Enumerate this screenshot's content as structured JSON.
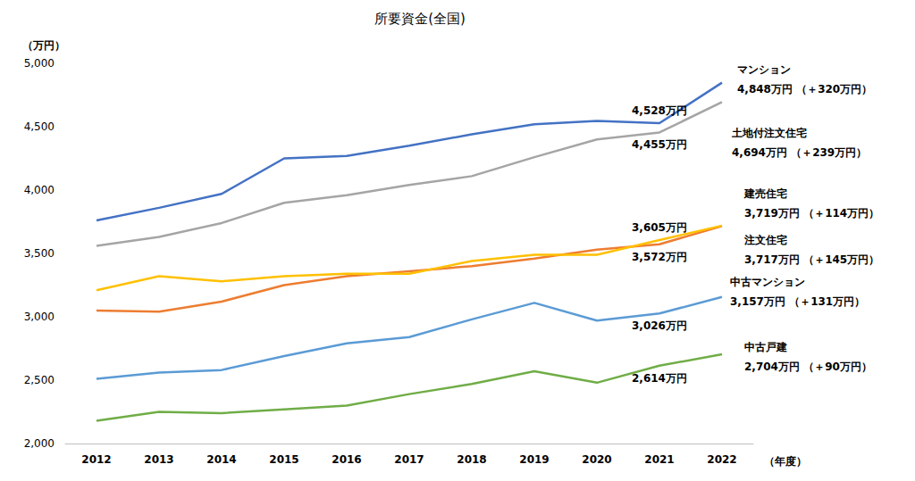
{
  "chart_data": {
    "type": "line",
    "title": "所要資金(全国)",
    "x_label": "（年度）",
    "y_label": "（万円）",
    "categories": [
      "2012",
      "2013",
      "2014",
      "2015",
      "2016",
      "2017",
      "2018",
      "2019",
      "2020",
      "2021",
      "2022"
    ],
    "ylim": [
      2000,
      5000
    ],
    "yticks": [
      {
        "value": 2000,
        "label": "2,000"
      },
      {
        "value": 2500,
        "label": "2,500"
      },
      {
        "value": 3000,
        "label": "3,000"
      },
      {
        "value": 3500,
        "label": "3,500"
      },
      {
        "value": 4000,
        "label": "4,000"
      },
      {
        "value": 4500,
        "label": "4,500"
      },
      {
        "value": 5000,
        "label": "5,000"
      }
    ],
    "grid": false,
    "series": [
      {
        "name": "マンション",
        "color": "#4472c4",
        "values": [
          3760,
          3860,
          3970,
          4250,
          4270,
          4350,
          4440,
          4520,
          4545,
          4528,
          4848
        ],
        "value_labels": [
          null,
          null,
          null,
          null,
          null,
          null,
          null,
          null,
          null,
          "4,528万円",
          "4,848万円"
        ],
        "change": "（＋320万円）"
      },
      {
        "name": "土地付注文住宅",
        "color": "#a5a5a5",
        "values": [
          3560,
          3630,
          3740,
          3900,
          3960,
          4040,
          4110,
          4260,
          4400,
          4455,
          4694
        ],
        "value_labels": [
          null,
          null,
          null,
          null,
          null,
          null,
          null,
          null,
          null,
          "4,455万円",
          "4,694万円"
        ],
        "change": "（＋239万円）"
      },
      {
        "name": "建売住宅",
        "color": "#ffc000",
        "values": [
          3210,
          3320,
          3280,
          3320,
          3340,
          3340,
          3440,
          3490,
          3490,
          3605,
          3719
        ],
        "value_labels": [
          null,
          null,
          null,
          null,
          null,
          null,
          null,
          null,
          null,
          "3,605万円",
          "3,719万円"
        ],
        "change": "（＋114万円）"
      },
      {
        "name": "注文住宅",
        "color": "#ed7d31",
        "values": [
          3050,
          3040,
          3120,
          3250,
          3320,
          3360,
          3400,
          3460,
          3530,
          3572,
          3717
        ],
        "value_labels": [
          null,
          null,
          null,
          null,
          null,
          null,
          null,
          null,
          null,
          "3,572万円",
          "3,717万円"
        ],
        "change": "（＋145万円）"
      },
      {
        "name": "中古マンション",
        "color": "#5b9bd5",
        "values": [
          2510,
          2560,
          2580,
          2690,
          2790,
          2840,
          2980,
          3110,
          2970,
          3026,
          3157
        ],
        "value_labels": [
          null,
          null,
          null,
          null,
          null,
          null,
          null,
          null,
          null,
          "3,026万円",
          "3,157万円"
        ],
        "change": "（＋131万円）"
      },
      {
        "name": "中古戸建",
        "color": "#70ad47",
        "values": [
          2180,
          2250,
          2240,
          2270,
          2300,
          2390,
          2470,
          2570,
          2480,
          2614,
          2704
        ],
        "value_labels": [
          null,
          null,
          null,
          null,
          null,
          null,
          null,
          null,
          null,
          "2,614万円",
          "2,704万円"
        ],
        "change": "（＋90万円）"
      }
    ]
  }
}
